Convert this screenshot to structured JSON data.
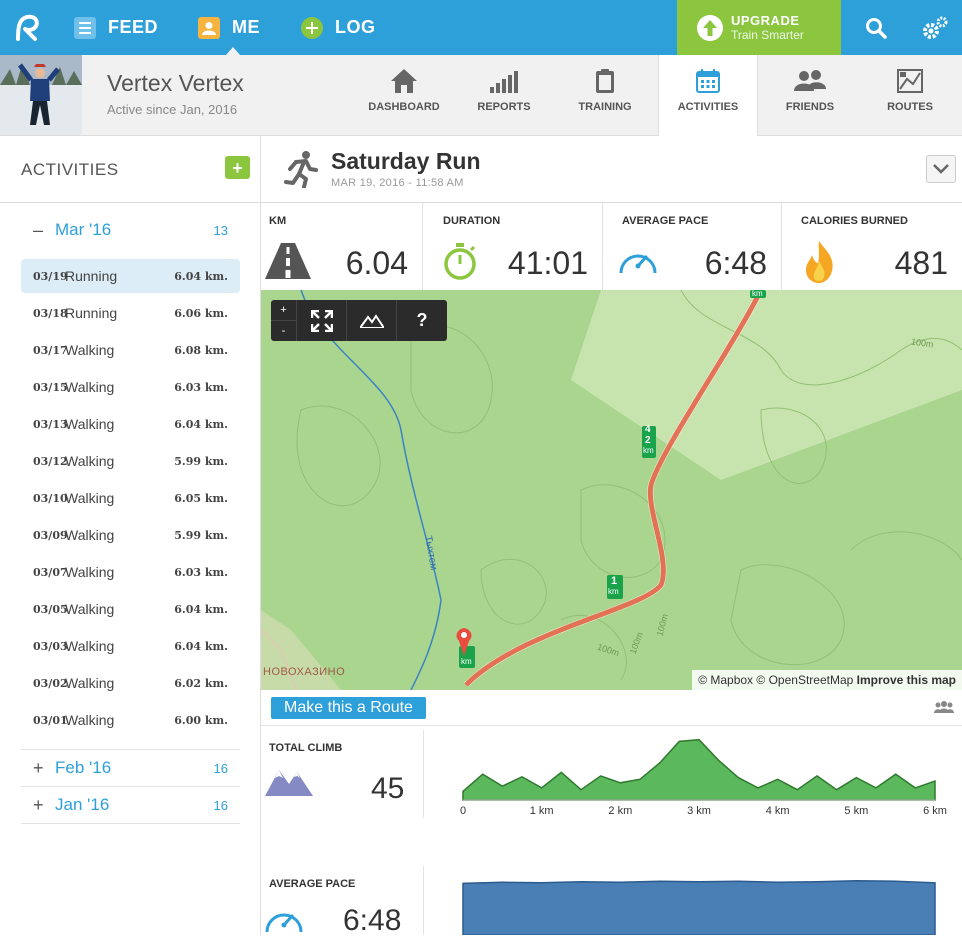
{
  "nav": {
    "feed": "FEED",
    "me": "ME",
    "log": "LOG",
    "upgrade_title": "UPGRADE",
    "upgrade_sub": "Train Smarter"
  },
  "profile": {
    "name": "Vertex Vertex",
    "since": "Active since Jan, 2016"
  },
  "tabs": [
    {
      "label": "DASHBOARD",
      "icon": "home-icon"
    },
    {
      "label": "REPORTS",
      "icon": "bar-chart-icon"
    },
    {
      "label": "TRAINING",
      "icon": "clipboard-icon"
    },
    {
      "label": "ACTIVITIES",
      "icon": "calendar-icon",
      "active": true
    },
    {
      "label": "FRIENDS",
      "icon": "people-icon"
    },
    {
      "label": "ROUTES",
      "icon": "map-icon"
    }
  ],
  "sidebar": {
    "title": "ACTIVITIES",
    "add": "+",
    "months": [
      {
        "sign": "–",
        "label": "Mar '16",
        "count": "13"
      },
      {
        "sign": "+",
        "label": "Feb '16",
        "count": "16"
      },
      {
        "sign": "+",
        "label": "Jan '16",
        "count": "16"
      }
    ],
    "activities": [
      {
        "date": "03/19",
        "type": "Running",
        "dist": "6.04 km."
      },
      {
        "date": "03/18",
        "type": "Running",
        "dist": "6.06 km."
      },
      {
        "date": "03/17",
        "type": "Walking",
        "dist": "6.08 km."
      },
      {
        "date": "03/15",
        "type": "Walking",
        "dist": "6.03 km."
      },
      {
        "date": "03/13",
        "type": "Walking",
        "dist": "6.04 km."
      },
      {
        "date": "03/12",
        "type": "Walking",
        "dist": "5.99 km."
      },
      {
        "date": "03/10",
        "type": "Walking",
        "dist": "6.05 km."
      },
      {
        "date": "03/09",
        "type": "Walking",
        "dist": "5.99 km."
      },
      {
        "date": "03/07",
        "type": "Walking",
        "dist": "6.03 km."
      },
      {
        "date": "03/05",
        "type": "Walking",
        "dist": "6.04 km."
      },
      {
        "date": "03/03",
        "type": "Walking",
        "dist": "6.04 km."
      },
      {
        "date": "03/02",
        "type": "Walking",
        "dist": "6.02 km."
      },
      {
        "date": "03/01",
        "type": "Walking",
        "dist": "6.00 km."
      }
    ]
  },
  "activity": {
    "title": "Saturday Run",
    "date": "MAR 19, 2016 - 11:58 AM"
  },
  "stats": [
    {
      "label": "KM",
      "value": "6.04",
      "icon": "road-icon"
    },
    {
      "label": "DURATION",
      "value": "41:01",
      "icon": "stopwatch-icon"
    },
    {
      "label": "AVERAGE PACE",
      "value": "6:48",
      "icon": "speedometer-icon"
    },
    {
      "label": "CALORIES BURNED",
      "value": "481",
      "icon": "flame-icon"
    }
  ],
  "map": {
    "zoom_in": "+",
    "zoom_out": "-",
    "help": "?",
    "town": "НОВОХАЗИНО",
    "river": "Тыхтем",
    "contour_label": "100m",
    "km_label": "km",
    "km_markers": [
      "1",
      "2",
      "4"
    ],
    "attrib_mapbox": "© Mapbox",
    "attrib_osm": "© OpenStreetMap",
    "attrib_improve": "Improve this map"
  },
  "route_button": "Make this a Route",
  "climb": {
    "label": "TOTAL CLIMB",
    "value": "45",
    "x_ticks": [
      "0",
      "1 km",
      "2 km",
      "3 km",
      "4 km",
      "5 km",
      "6 km"
    ]
  },
  "pace": {
    "label": "AVERAGE PACE",
    "value": "6:48"
  },
  "colors": {
    "brand_blue": "#2d9fd9",
    "upgrade_green": "#8cc63f",
    "route_red": "#e25a3c",
    "elevation_green": "#5cb85c",
    "pace_blue": "#4a7fb5"
  },
  "chart_data": [
    {
      "type": "area",
      "title": "",
      "xlabel": "",
      "ylabel": "",
      "x": [
        0,
        0.25,
        0.5,
        0.75,
        1.0,
        1.25,
        1.5,
        1.75,
        2.0,
        2.25,
        2.5,
        2.75,
        3.0,
        3.25,
        3.5,
        3.75,
        4.0,
        4.25,
        4.5,
        4.75,
        5.0,
        5.25,
        5.5,
        5.75,
        6.0
      ],
      "series": [
        {
          "values": [
            10,
            30,
            16,
            27,
            14,
            32,
            12,
            28,
            20,
            24,
            43,
            68,
            70,
            46,
            26,
            14,
            24,
            12,
            28,
            12,
            26,
            14,
            30,
            14,
            22
          ]
        }
      ],
      "xlim": [
        0,
        6
      ]
    },
    {
      "type": "area",
      "title": "",
      "xlabel": "",
      "ylabel": "",
      "x": [
        0,
        0.5,
        1.0,
        1.5,
        2.0,
        2.5,
        3.0,
        3.5,
        4.0,
        4.5,
        5.0,
        5.5,
        6.0
      ],
      "series": [
        {
          "values": [
            88,
            90,
            89,
            91,
            90,
            92,
            91,
            92,
            90,
            91,
            93,
            92,
            89
          ]
        }
      ],
      "xlim": [
        0,
        6
      ]
    }
  ]
}
